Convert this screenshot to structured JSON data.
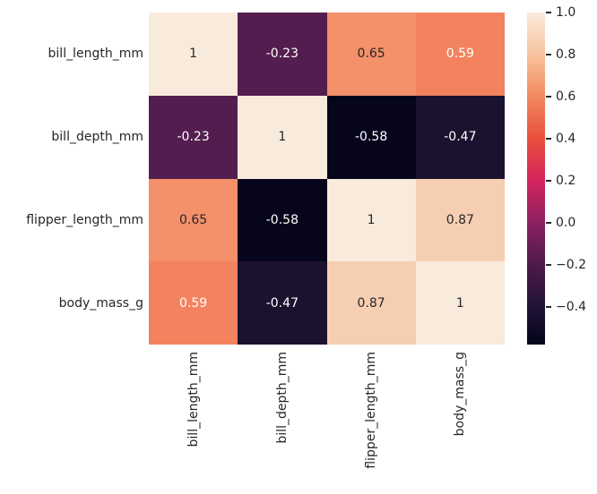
{
  "chart_data": {
    "type": "heatmap",
    "title": "",
    "categories": [
      "bill_length_mm",
      "bill_depth_mm",
      "flipper_length_mm",
      "body_mass_g"
    ],
    "matrix": [
      [
        1,
        -0.23,
        0.65,
        0.59
      ],
      [
        -0.23,
        1,
        -0.58,
        -0.47
      ],
      [
        0.65,
        -0.58,
        1,
        0.87
      ],
      [
        0.59,
        -0.47,
        0.87,
        1
      ]
    ],
    "cell_labels": [
      [
        "1",
        "-0.23",
        "0.65",
        "0.59"
      ],
      [
        "-0.23",
        "1",
        "-0.58",
        "-0.47"
      ],
      [
        "0.65",
        "-0.58",
        "1",
        "0.87"
      ],
      [
        "0.59",
        "-0.47",
        "0.87",
        "1"
      ]
    ],
    "cell_colors": [
      [
        "#f9ebdc",
        "#531e4f",
        "#f4906a",
        "#f2835e"
      ],
      [
        "#531e4f",
        "#f9ebdc",
        "#06051c",
        "#1b1230"
      ],
      [
        "#f4906a",
        "#06051c",
        "#f9ebdc",
        "#f6cfb2"
      ],
      [
        "#f2835e",
        "#1b1230",
        "#f6cfb2",
        "#f9ebdc"
      ]
    ],
    "cell_text_colors": [
      [
        "#262626",
        "#ffffff",
        "#262626",
        "#ffffff"
      ],
      [
        "#ffffff",
        "#262626",
        "#ffffff",
        "#ffffff"
      ],
      [
        "#262626",
        "#ffffff",
        "#262626",
        "#262626"
      ],
      [
        "#ffffff",
        "#ffffff",
        "#262626",
        "#262626"
      ]
    ],
    "colormap": "rocket",
    "vmin": -0.58,
    "vmax": 1.0,
    "legend_position": "right",
    "grid": false,
    "colorbar": {
      "ticks": [
        {
          "value": 1.0,
          "label": "1.0"
        },
        {
          "value": 0.8,
          "label": "0.8"
        },
        {
          "value": 0.6,
          "label": "0.6"
        },
        {
          "value": 0.4,
          "label": "0.4"
        },
        {
          "value": 0.2,
          "label": "0.2"
        },
        {
          "value": 0.0,
          "label": "0.0"
        },
        {
          "value": -0.2,
          "label": "−0.2"
        },
        {
          "value": -0.4,
          "label": "−0.4"
        }
      ],
      "gradient_stops": [
        {
          "pos": 0,
          "color": "#faebdd"
        },
        {
          "pos": 12.7,
          "color": "#f8c39e"
        },
        {
          "pos": 25.3,
          "color": "#f3895f"
        },
        {
          "pos": 38.0,
          "color": "#e84f3d"
        },
        {
          "pos": 50.6,
          "color": "#d5245e"
        },
        {
          "pos": 63.3,
          "color": "#8b2160"
        },
        {
          "pos": 75.9,
          "color": "#4d1a49"
        },
        {
          "pos": 88.6,
          "color": "#211237"
        },
        {
          "pos": 100,
          "color": "#03051a"
        }
      ]
    }
  },
  "colors": {
    "background": "#ffffff",
    "label_text": "#262626",
    "tick_mark": "#262626"
  }
}
